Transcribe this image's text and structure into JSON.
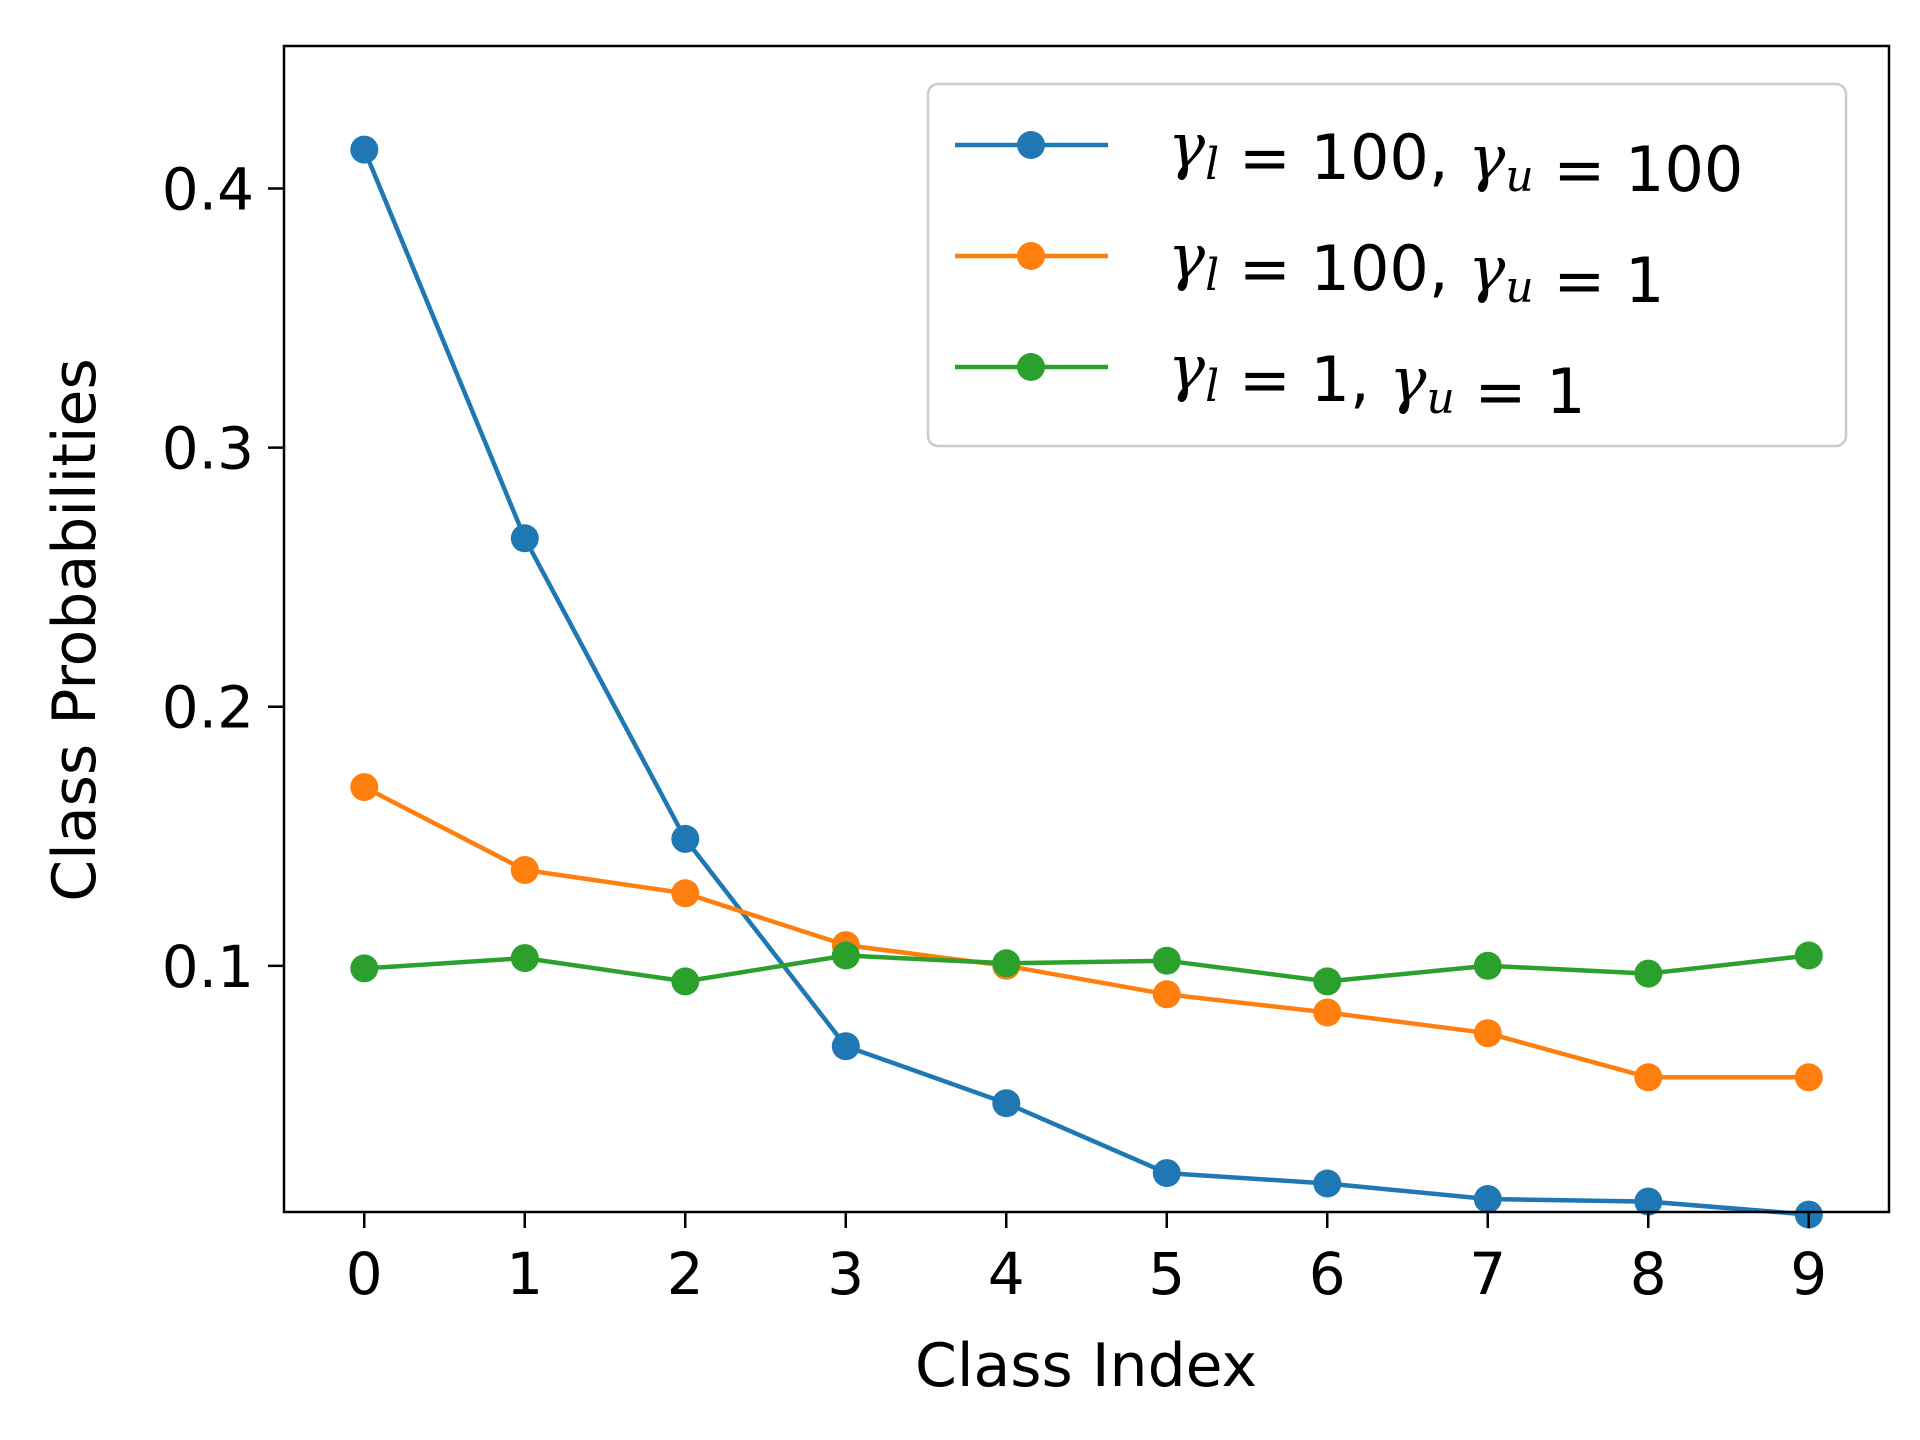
{
  "chart_data": {
    "type": "line",
    "title": "",
    "xlabel": "Class Index",
    "ylabel": "Class Probabilities",
    "x": [
      0,
      1,
      2,
      3,
      4,
      5,
      6,
      7,
      8,
      9
    ],
    "xlim": [
      -0.5,
      9.5
    ],
    "ylim": [
      0.005,
      0.455
    ],
    "xticks": [
      0,
      1,
      2,
      3,
      4,
      5,
      6,
      7,
      8,
      9
    ],
    "yticks": [
      0.1,
      0.2,
      0.3,
      0.4
    ],
    "ytick_labels": [
      "0.1",
      "0.2",
      "0.3",
      "0.4"
    ],
    "grid": false,
    "legend_position": "top-right",
    "series": [
      {
        "name": "γl = 100, γu = 100",
        "legend": {
          "a": "γ",
          "a_sub": "l",
          "a_val": " = 100, ",
          "b": "γ",
          "b_sub": "u",
          "b_val": " = 100"
        },
        "color": "#1f77b4",
        "values": [
          0.415,
          0.265,
          0.149,
          0.069,
          0.047,
          0.02,
          0.016,
          0.01,
          0.009,
          0.004
        ]
      },
      {
        "name": "γl = 100, γu = 1",
        "legend": {
          "a": "γ",
          "a_sub": "l",
          "a_val": " = 100, ",
          "b": "γ",
          "b_sub": "u",
          "b_val": " = 1"
        },
        "color": "#ff7f0e",
        "values": [
          0.169,
          0.137,
          0.128,
          0.108,
          0.1,
          0.089,
          0.082,
          0.074,
          0.057,
          0.057
        ]
      },
      {
        "name": "γl = 1, γu = 1",
        "legend": {
          "a": "γ",
          "a_sub": "l",
          "a_val": " = 1, ",
          "b": "γ",
          "b_sub": "u",
          "b_val": " = 1"
        },
        "color": "#2ca02c",
        "values": [
          0.099,
          0.103,
          0.094,
          0.104,
          0.101,
          0.102,
          0.094,
          0.1,
          0.097,
          0.104
        ]
      }
    ]
  }
}
